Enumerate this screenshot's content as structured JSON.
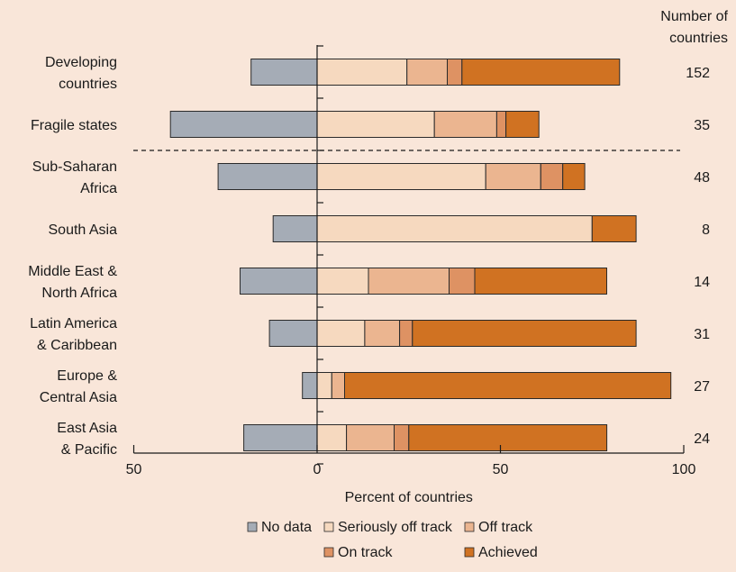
{
  "chart_data": {
    "type": "bar",
    "orientation": "horizontal",
    "stacked": true,
    "xlabel": "Percent of countries",
    "xlim": [
      -50,
      100
    ],
    "xticks": [
      {
        "value": -50,
        "label": "50"
      },
      {
        "value": 0,
        "label": "0"
      },
      {
        "value": 50,
        "label": "50"
      },
      {
        "value": 100,
        "label": "100"
      }
    ],
    "count_header": [
      "Number of",
      "countries"
    ],
    "categories": [
      {
        "label": [
          "Developing",
          "countries"
        ],
        "count": "152"
      },
      {
        "label": [
          "Fragile states"
        ],
        "count": "35"
      },
      {
        "label": [
          "Sub-Saharan",
          "Africa"
        ],
        "count": "48"
      },
      {
        "label": [
          "South Asia"
        ],
        "count": "8"
      },
      {
        "label": [
          "Middle East &",
          "North Africa"
        ],
        "count": "14"
      },
      {
        "label": [
          "Latin America",
          "& Caribbean"
        ],
        "count": "31"
      },
      {
        "label": [
          "Europe &",
          "Central Asia"
        ],
        "count": "27"
      },
      {
        "label": [
          "East Asia",
          "& Pacific"
        ],
        "count": "24"
      }
    ],
    "separator_after_index": 1,
    "series": [
      {
        "name": "No data",
        "color": "#a5acb6",
        "direction": "negative",
        "values": [
          18,
          40,
          27,
          12,
          21,
          13,
          4,
          20
        ]
      },
      {
        "name": "Seriously off track",
        "color": "#f6d9bf",
        "direction": "positive",
        "values": [
          24.5,
          32,
          46,
          75,
          14,
          13,
          4,
          8
        ]
      },
      {
        "name": "Off track",
        "color": "#ebb590",
        "direction": "positive",
        "values": [
          11,
          17,
          15,
          0,
          22,
          9.5,
          3.5,
          13
        ]
      },
      {
        "name": "On track",
        "color": "#de9263",
        "direction": "positive",
        "values": [
          4,
          2.5,
          6,
          0,
          7,
          3.5,
          0,
          4
        ]
      },
      {
        "name": "Achieved",
        "color": "#d07222",
        "direction": "positive",
        "values": [
          43,
          9,
          6,
          12,
          36,
          61,
          89,
          54
        ]
      }
    ],
    "legend_position": "bottom"
  }
}
